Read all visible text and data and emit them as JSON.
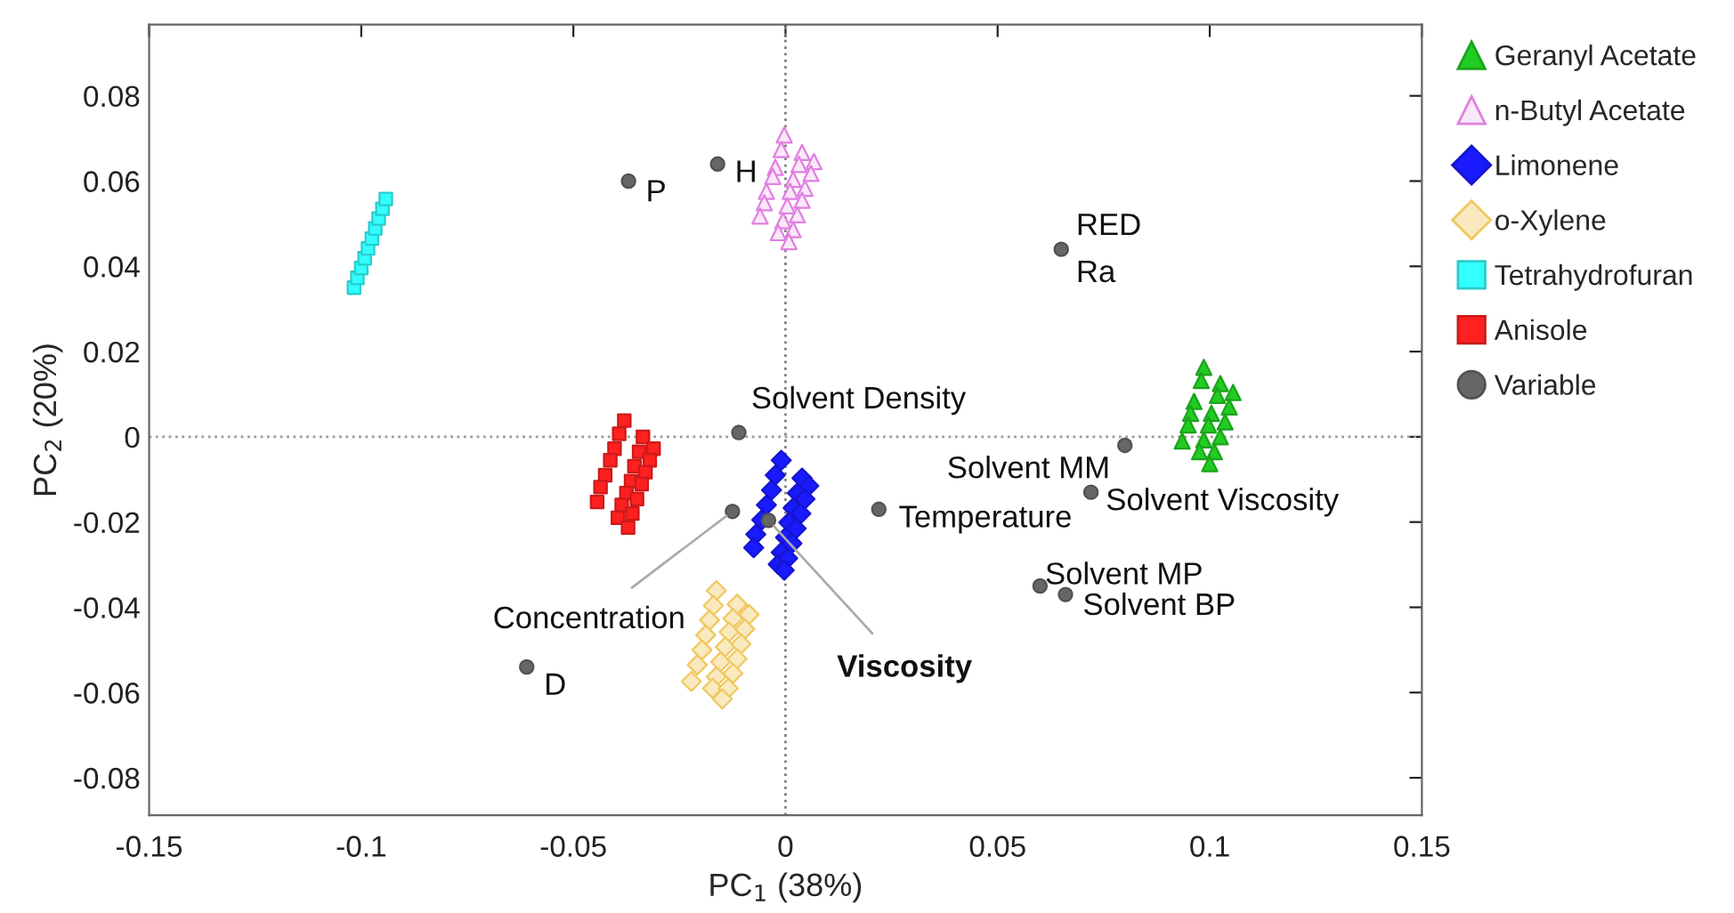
{
  "chart_data": {
    "type": "scatter",
    "xlabel": "PC$_{1}$ (38%)",
    "ylabel": "PC$_{2}$ (20%)",
    "xlim": [
      -0.15,
      0.15
    ],
    "ylim": [
      -0.0888,
      0.0967
    ],
    "xticks": [
      -0.15,
      -0.1,
      -0.05,
      0,
      0.05,
      0.1,
      0.15
    ],
    "yticks": [
      -0.08,
      -0.06,
      -0.04,
      -0.02,
      0,
      0.02,
      0.04,
      0.06,
      0.08
    ],
    "grid": false,
    "legend": "right",
    "ref_lines": [
      {
        "axis": "x",
        "value": 0,
        "line_style": "dotted",
        "color": "#808080"
      },
      {
        "axis": "y",
        "value": 0,
        "line_style": "dotted",
        "color": "#999999"
      }
    ],
    "series": [
      {
        "name": "Geranyl Acetate",
        "color": "#22cc22",
        "marker": "triangle",
        "x": [
          0.0986,
          0.098,
          0.0963,
          0.0955,
          0.0949,
          0.0935,
          0.1025,
          0.1018,
          0.1004,
          0.0997,
          0.0986,
          0.0976,
          0.1055,
          0.1046,
          0.1036,
          0.1025,
          0.1011,
          0.1
        ],
        "values": [
          0.0163,
          0.0132,
          0.0083,
          0.0055,
          0.0028,
          -0.001,
          0.0125,
          0.0097,
          0.0055,
          0.0028,
          -0.0007,
          -0.0035,
          0.0104,
          0.007,
          0.0035,
          0,
          -0.0035,
          -0.0063
        ]
      },
      {
        "name": "n-Butyl Acetate",
        "color": "#e080e0",
        "marker": "triangle",
        "x": [
          -0.0003,
          -0.001,
          -0.0024,
          -0.003,
          -0.0045,
          -0.005,
          -0.006,
          0.0039,
          0.0032,
          0.0018,
          0.0011,
          0.0004,
          -0.0006,
          -0.0017,
          0.0067,
          0.006,
          0.0046,
          0.0039,
          0.0028,
          0.0018,
          0.0008
        ],
        "values": [
          0.0708,
          0.0674,
          0.0632,
          0.0611,
          0.0576,
          0.0549,
          0.0518,
          0.0667,
          0.0639,
          0.0604,
          0.0576,
          0.0542,
          0.0507,
          0.0479,
          0.0646,
          0.0618,
          0.0583,
          0.0555,
          0.0521,
          0.0486,
          0.0458
        ]
      },
      {
        "name": "Limonene",
        "color": "#1a1aff",
        "marker": "diamond",
        "x": [
          -0.001,
          -0.0024,
          -0.0033,
          -0.0045,
          -0.0056,
          -0.007,
          -0.0075,
          0.0039,
          0.0028,
          0.0018,
          0.0008,
          0,
          -0.001,
          -0.0017,
          0.0055,
          0.0046,
          0.0036,
          0.0025,
          0.0015,
          0.0005,
          -0.0003
        ],
        "values": [
          -0.0055,
          -0.009,
          -0.0125,
          -0.016,
          -0.0195,
          -0.0229,
          -0.026,
          -0.0097,
          -0.0132,
          -0.0167,
          -0.0201,
          -0.0236,
          -0.0271,
          -0.0299,
          -0.0115,
          -0.0146,
          -0.018,
          -0.0215,
          -0.025,
          -0.0285,
          -0.0313
        ]
      },
      {
        "name": "o-Xylene",
        "color": "#f0c860",
        "marker": "diamond",
        "x": [
          -0.0163,
          -0.017,
          -0.0179,
          -0.0188,
          -0.0197,
          -0.0208,
          -0.0222,
          -0.0114,
          -0.0124,
          -0.0133,
          -0.0142,
          -0.0153,
          -0.0163,
          -0.0172,
          -0.0086,
          -0.0096,
          -0.0105,
          -0.0114,
          -0.0124,
          -0.0135,
          -0.0149
        ],
        "values": [
          -0.0361,
          -0.0396,
          -0.043,
          -0.0465,
          -0.05,
          -0.0535,
          -0.0574,
          -0.0393,
          -0.0426,
          -0.0458,
          -0.0493,
          -0.0528,
          -0.0563,
          -0.059,
          -0.0417,
          -0.0451,
          -0.0486,
          -0.0521,
          -0.0555,
          -0.059,
          -0.0615
        ]
      },
      {
        "name": "Tetrahydrofuran",
        "color": "#33ffff",
        "marker": "square",
        "x": [
          -0.1017,
          -0.1009,
          -0.1,
          -0.0992,
          -0.0984,
          -0.0975,
          -0.0967,
          -0.0959,
          -0.095,
          -0.0942
        ],
        "values": [
          0.035,
          0.0373,
          0.0396,
          0.0419,
          0.0442,
          0.0465,
          0.0489,
          0.0512,
          0.0535,
          0.0558
        ]
      },
      {
        "name": "Anisole",
        "color": "#ff2020",
        "marker": "square",
        "x": [
          -0.038,
          -0.0392,
          -0.0403,
          -0.0413,
          -0.0425,
          -0.0436,
          -0.0444,
          -0.0336,
          -0.0345,
          -0.0356,
          -0.0364,
          -0.0375,
          -0.0386,
          -0.0395,
          -0.0311,
          -0.032,
          -0.033,
          -0.0339,
          -0.035,
          -0.0361,
          -0.0371
        ],
        "values": [
          0.0038,
          0.0007,
          -0.0028,
          -0.0055,
          -0.009,
          -0.0118,
          -0.0153,
          0,
          -0.0035,
          -0.0069,
          -0.0104,
          -0.0132,
          -0.016,
          -0.019,
          -0.0028,
          -0.0055,
          -0.0083,
          -0.0111,
          -0.0146,
          -0.018,
          -0.0213
        ]
      },
      {
        "name": "Variable",
        "color": "#666666",
        "marker": "circle",
        "x": [
          -0.037,
          -0.016,
          0.065,
          -0.011,
          0.08,
          0.072,
          0.022,
          -0.0125,
          -0.004,
          0.06,
          0.066,
          -0.061
        ],
        "values": [
          0.06,
          0.064,
          0.044,
          0.001,
          -0.002,
          -0.013,
          -0.017,
          -0.0175,
          -0.0196,
          -0.035,
          -0.037,
          -0.054
        ]
      }
    ],
    "annotations": [
      {
        "text": "P",
        "x": -0.037,
        "y": 0.06
      },
      {
        "text": "H",
        "x": -0.016,
        "y": 0.064
      },
      {
        "text": "RED",
        "x": 0.065,
        "y": 0.044
      },
      {
        "text": "Ra",
        "x": 0.065,
        "y": 0.044
      },
      {
        "text": "Solvent Density",
        "x": -0.011,
        "y": 0.001
      },
      {
        "text": "Solvent MM",
        "x": 0.08,
        "y": -0.002
      },
      {
        "text": "Solvent Viscosity",
        "x": 0.072,
        "y": -0.013
      },
      {
        "text": "Temperature",
        "x": 0.022,
        "y": -0.017
      },
      {
        "text": "Concentration",
        "x": -0.0125,
        "y": -0.0175
      },
      {
        "text": "Viscosity",
        "x": -0.004,
        "y": -0.0196
      },
      {
        "text": "Solvent MP",
        "x": 0.06,
        "y": -0.035
      },
      {
        "text": "Solvent BP",
        "x": 0.066,
        "y": -0.037
      },
      {
        "text": "D",
        "x": -0.061,
        "y": -0.054
      }
    ]
  }
}
